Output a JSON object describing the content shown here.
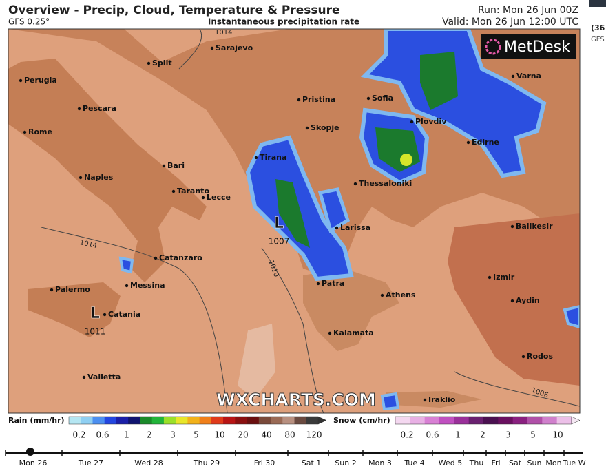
{
  "header": {
    "title": "Overview - Precip, Cloud, Temperature & Pressure",
    "model": "GFS 0.25°",
    "subtitle": "Instantaneous precipitation rate",
    "run": "Run: Mon 26 Jun 00Z",
    "valid": "Valid: Mon 26 Jun 12:00 UTC"
  },
  "logo": "MetDesk",
  "watermark": "WXCHARTS.COM",
  "cities": [
    "Sarajevo",
    "Split",
    "Perugia",
    "Pescara",
    "Rome",
    "Bari",
    "Naples",
    "Taranto",
    "Lecce",
    "Tirana",
    "Pristina",
    "Skopje",
    "Sofia",
    "Plovdiv",
    "Edirne",
    "Varna",
    "Thessaloniki",
    "Larissa",
    "Balikesir",
    "Catanzaro",
    "Messina",
    "Palermo",
    "Catania",
    "Patra",
    "Athens",
    "Izmir",
    "Aydin",
    "Kalamata",
    "Rodos",
    "Valletta",
    "Iraklio"
  ],
  "pressure_centers": [
    {
      "symbol": "L",
      "value": "1007"
    },
    {
      "symbol": "L",
      "value": "1011"
    }
  ],
  "isobar_labels": [
    "1014",
    "1014",
    "1010",
    "1006"
  ],
  "legend": {
    "rain": {
      "title": "Rain (mm/hr)",
      "ticks": [
        "0.2",
        "0.6",
        "1",
        "2",
        "3",
        "5",
        "10",
        "20",
        "40",
        "80",
        "120"
      ]
    },
    "snow": {
      "title": "Snow (cm/hr)",
      "ticks": [
        "0.2",
        "0.6",
        "1",
        "2",
        "3",
        "5",
        "10"
      ]
    }
  },
  "timeline": [
    "Mon 26",
    "Tue 27",
    "Wed 28",
    "Thu 29",
    "Fri 30",
    "Sat 1",
    "Sun 2",
    "Mon 3",
    "Tue 4",
    "Wed 5",
    "Thu",
    "Fri",
    "Sat",
    "Sun",
    "Mon",
    "Tue W"
  ],
  "side_panel": {
    "run_fragment": "(36",
    "model_fragment": "GFS"
  }
}
